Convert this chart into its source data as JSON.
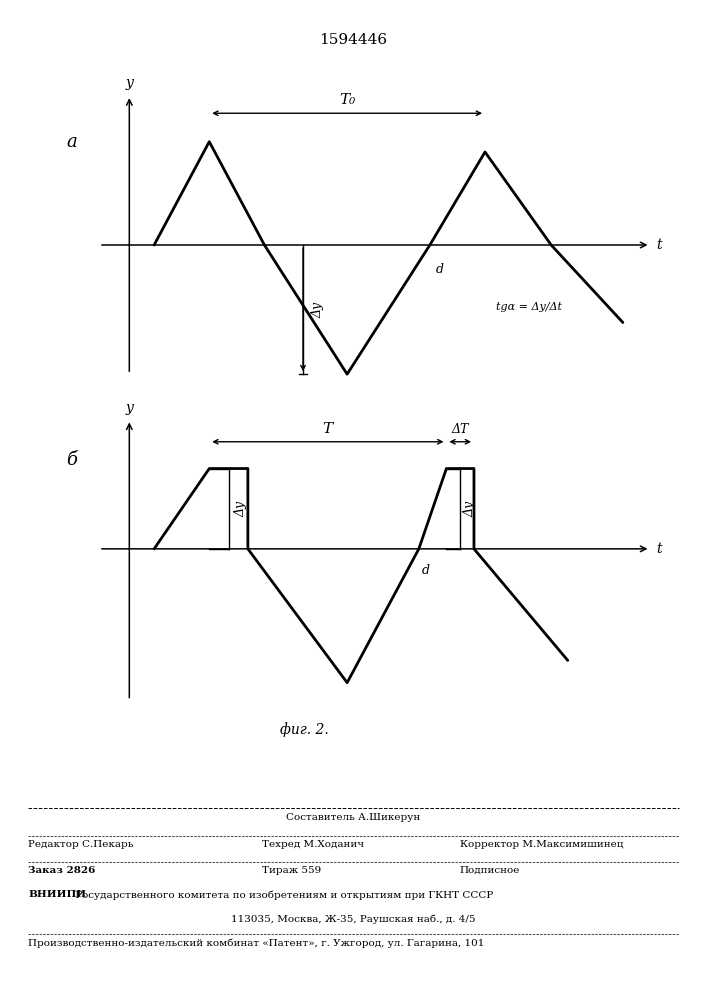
{
  "title": "1594446",
  "title_fontsize": 11,
  "fig_width": 7.07,
  "fig_height": 10.0,
  "label_a": "a",
  "label_b": "б",
  "fig_caption": "фиг. 2.",
  "diagram_a": {
    "x_label": "t",
    "y_label": "y",
    "T0_label": "T₀",
    "Ay_label": "Δy",
    "angle_label": "d",
    "tgd_label": "tgα = Δy/Δt"
  },
  "diagram_b": {
    "x_label": "t",
    "y_label": "y",
    "T_label": "T",
    "DeltaT_label": "ΔT",
    "Ay_label": "Δy",
    "d_label": "d"
  },
  "footer": {
    "sostavitel": "Составитель А.Шикерун",
    "redaktor": "Редактор С.Пекарь",
    "tehred": "Техред М.Ходанич",
    "korrektor": "Корректор М.Максимишинец",
    "zakaz": "Заказ 2826",
    "tirazh": "Тираж 559",
    "podpisnoe": "Подписное",
    "vniipiBold": "ВНИИПИ",
    "vniipiRest": " Государственного комитета по изобретениям и открытиям при ГКНТ СССР",
    "address": "113035, Москва, Ж-35, Раушская наб., д. 4/5",
    "patent": "Производственно-издательский комбинат «Патент», г. Ужгород, ул. Гагарина, 101"
  }
}
